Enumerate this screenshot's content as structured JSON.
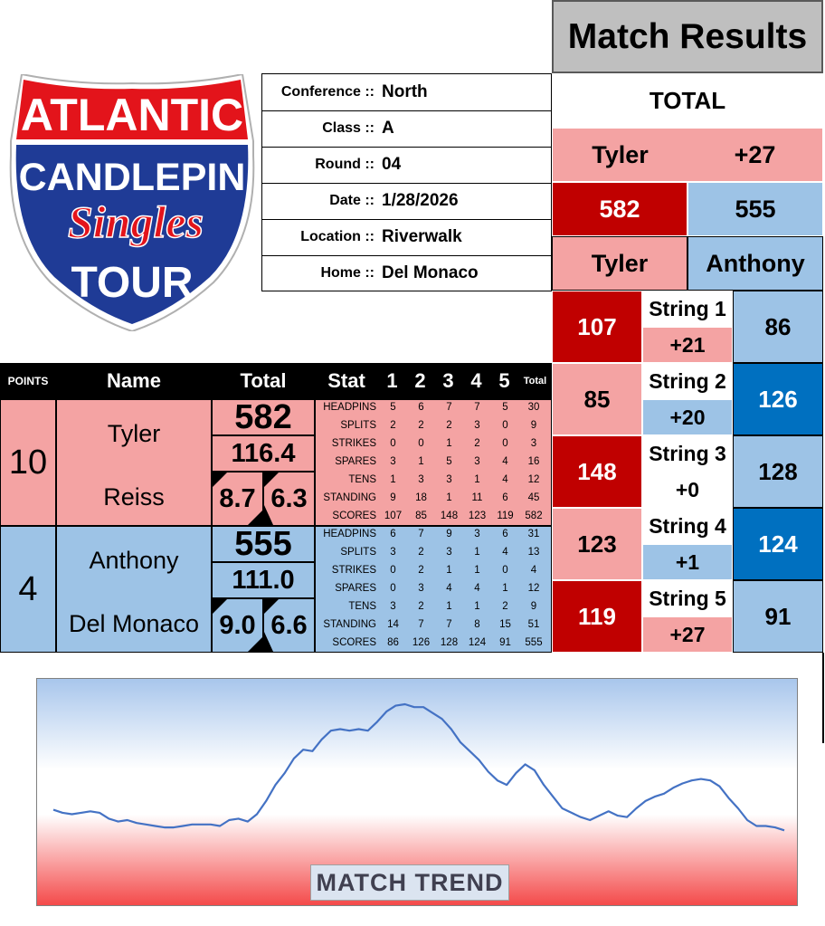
{
  "logo": {
    "line1": "ATLANTIC",
    "line2": "CANDLEPIN",
    "line3": "Singles",
    "line4": "TOUR"
  },
  "match_info": [
    {
      "label": "Conference ::",
      "value": "North"
    },
    {
      "label": "Class ::",
      "value": "A"
    },
    {
      "label": "Round ::",
      "value": "04"
    },
    {
      "label": "Date ::",
      "value": "1/28/2026"
    },
    {
      "label": "Location ::",
      "value": "Riverwalk"
    },
    {
      "label": "Home ::",
      "value": "Del Monaco"
    }
  ],
  "results": {
    "title": "Match Results",
    "total_label": "TOTAL",
    "leader": "Tyler",
    "margin": "+27",
    "score_a": "582",
    "score_b": "555",
    "name_a": "Tyler",
    "name_b": "Anthony",
    "strings": [
      {
        "label": "String 1",
        "a": "107",
        "b": "86",
        "margin": "+21"
      },
      {
        "label": "String 2",
        "a": "85",
        "b": "126",
        "margin": "+20"
      },
      {
        "label": "String 3",
        "a": "148",
        "b": "128",
        "margin": "+0"
      },
      {
        "label": "String 4",
        "a": "123",
        "b": "124",
        "margin": "+1"
      },
      {
        "label": "String 5",
        "a": "119",
        "b": "91",
        "margin": "+27"
      }
    ]
  },
  "table": {
    "headers": {
      "points": "POINTS",
      "name": "Name",
      "total": "Total",
      "stat": "Stat",
      "g1": "1",
      "g2": "2",
      "g3": "3",
      "g4": "4",
      "g5": "5",
      "gt": "Total"
    },
    "players": [
      {
        "points": "10",
        "first": "Tyler",
        "last": "Reiss",
        "total": "582",
        "avg": "116.4",
        "mark1": "8.7",
        "mark2": "6.3",
        "stats": [
          {
            "name": "HEADPINS",
            "v": [
              "5",
              "6",
              "7",
              "7",
              "5"
            ],
            "t": "30"
          },
          {
            "name": "SPLITS",
            "v": [
              "2",
              "2",
              "2",
              "3",
              "0"
            ],
            "t": "9"
          },
          {
            "name": "STRIKES",
            "v": [
              "0",
              "0",
              "1",
              "2",
              "0"
            ],
            "t": "3"
          },
          {
            "name": "SPARES",
            "v": [
              "3",
              "1",
              "5",
              "3",
              "4"
            ],
            "t": "16"
          },
          {
            "name": "TENS",
            "v": [
              "1",
              "3",
              "3",
              "1",
              "4"
            ],
            "t": "12"
          },
          {
            "name": "STANDING",
            "v": [
              "9",
              "18",
              "1",
              "11",
              "6"
            ],
            "t": "45"
          },
          {
            "name": "SCORES",
            "v": [
              "107",
              "85",
              "148",
              "123",
              "119"
            ],
            "t": "582"
          }
        ]
      },
      {
        "points": "4",
        "first": "Anthony",
        "last": "Del Monaco",
        "total": "555",
        "avg": "111.0",
        "mark1": "9.0",
        "mark2": "6.6",
        "stats": [
          {
            "name": "HEADPINS",
            "v": [
              "6",
              "7",
              "9",
              "3",
              "6"
            ],
            "t": "31"
          },
          {
            "name": "SPLITS",
            "v": [
              "3",
              "2",
              "3",
              "1",
              "4"
            ],
            "t": "13"
          },
          {
            "name": "STRIKES",
            "v": [
              "0",
              "2",
              "1",
              "1",
              "0"
            ],
            "t": "4"
          },
          {
            "name": "SPARES",
            "v": [
              "0",
              "3",
              "4",
              "4",
              "1"
            ],
            "t": "12"
          },
          {
            "name": "TENS",
            "v": [
              "3",
              "2",
              "1",
              "1",
              "2"
            ],
            "t": "9"
          },
          {
            "name": "STANDING",
            "v": [
              "14",
              "7",
              "7",
              "8",
              "15"
            ],
            "t": "51"
          },
          {
            "name": "SCORES",
            "v": [
              "86",
              "126",
              "128",
              "124",
              "91"
            ],
            "t": "555"
          }
        ]
      }
    ]
  },
  "colors": {
    "pink": "#f4a3a3",
    "red": "#c00000",
    "light_blue": "#9dc3e6",
    "dark_blue": "#0070c0",
    "trend_line": "#4472c4"
  },
  "trend": {
    "label": "MATCH TREND",
    "relative_values": [
      0.28,
      0.26,
      0.25,
      0.26,
      0.27,
      0.26,
      0.22,
      0.2,
      0.21,
      0.19,
      0.18,
      0.17,
      0.16,
      0.16,
      0.17,
      0.18,
      0.18,
      0.18,
      0.17,
      0.21,
      0.22,
      0.2,
      0.25,
      0.34,
      0.45,
      0.53,
      0.63,
      0.69,
      0.68,
      0.76,
      0.82,
      0.83,
      0.82,
      0.83,
      0.82,
      0.88,
      0.95,
      0.99,
      1.0,
      0.98,
      0.98,
      0.94,
      0.9,
      0.83,
      0.74,
      0.68,
      0.62,
      0.54,
      0.48,
      0.45,
      0.53,
      0.59,
      0.55,
      0.45,
      0.37,
      0.29,
      0.26,
      0.23,
      0.21,
      0.24,
      0.27,
      0.24,
      0.23,
      0.29,
      0.34,
      0.37,
      0.39,
      0.43,
      0.46,
      0.48,
      0.49,
      0.48,
      0.44,
      0.36,
      0.29,
      0.21,
      0.17,
      0.17,
      0.16,
      0.14
    ]
  }
}
